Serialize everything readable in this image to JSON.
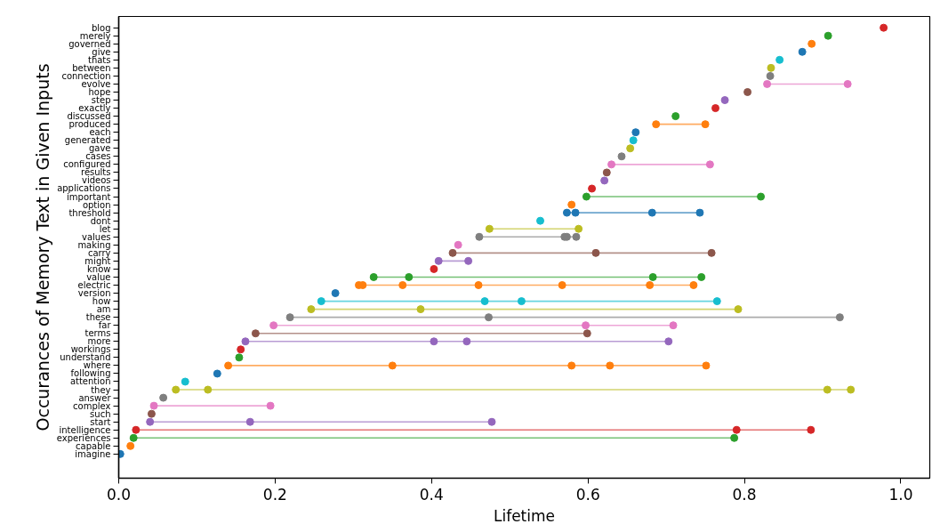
{
  "chart_data": {
    "type": "line",
    "orientation": "horizontal",
    "marker": "circle",
    "line_style": "solid",
    "xlabel": "Lifetime",
    "ylabel": "Occurances of Memory Text in Given Inputs",
    "xlim": [
      0,
      1.037
    ],
    "xticks": [
      {
        "value": 0,
        "label": "0.0"
      },
      0.2,
      0.4,
      0.6,
      0.8,
      {
        "value": 1,
        "label": "1.0"
      }
    ],
    "categories": [
      "blog",
      "merely",
      "governed",
      "give",
      "thats",
      "between",
      "connection",
      "evolve",
      "hope",
      "step",
      "exactly",
      "discussed",
      "produced",
      "each",
      "generated",
      "gave",
      "cases",
      "configured",
      "results",
      "videos",
      "applications",
      "important",
      "option",
      "threshold",
      "dont",
      "let",
      "values",
      "making",
      "carry",
      "might",
      "know",
      "value",
      "electric",
      "version",
      "how",
      "am",
      "these",
      "far",
      "terms",
      "more",
      "workings",
      "understand",
      "where",
      "following",
      "attention",
      "they",
      "answer",
      "complex",
      "such",
      "start",
      "intelligence",
      "experiences",
      "capable",
      "imagine"
    ],
    "series": [
      {
        "color": "#d62728",
        "x": [
          "blog"
        ],
        "values": [
          0.978
        ]
      },
      {
        "color": "#2ca02c",
        "x": [
          "merely"
        ],
        "values": [
          0.907
        ]
      },
      {
        "color": "#ff7f0e",
        "x": [
          "governed"
        ],
        "values": [
          0.886
        ]
      },
      {
        "color": "#1f77b4",
        "x": [
          "give"
        ],
        "values": [
          0.874
        ]
      },
      {
        "color": "#17becf",
        "x": [
          "thats"
        ],
        "values": [
          0.845
        ]
      },
      {
        "color": "#bcbd22",
        "x": [
          "between"
        ],
        "values": [
          0.834
        ]
      },
      {
        "color": "#7f7f7f",
        "x": [
          "connection"
        ],
        "values": [
          0.833
        ]
      },
      {
        "color": "#e377c2",
        "x": [
          "evolve",
          "evolve"
        ],
        "values": [
          0.829,
          0.932
        ]
      },
      {
        "color": "#8c564b",
        "x": [
          "hope"
        ],
        "values": [
          0.804
        ]
      },
      {
        "color": "#9467bd",
        "x": [
          "step"
        ],
        "values": [
          0.775
        ]
      },
      {
        "color": "#d62728",
        "x": [
          "exactly"
        ],
        "values": [
          0.763
        ]
      },
      {
        "color": "#2ca02c",
        "x": [
          "discussed"
        ],
        "values": [
          0.712
        ]
      },
      {
        "color": "#ff7f0e",
        "x": [
          "produced",
          "produced"
        ],
        "values": [
          0.687,
          0.75
        ]
      },
      {
        "color": "#1f77b4",
        "x": [
          "each"
        ],
        "values": [
          0.661
        ]
      },
      {
        "color": "#17becf",
        "x": [
          "generated"
        ],
        "values": [
          0.658
        ]
      },
      {
        "color": "#bcbd22",
        "x": [
          "gave"
        ],
        "values": [
          0.654
        ]
      },
      {
        "color": "#7f7f7f",
        "x": [
          "cases"
        ],
        "values": [
          0.643
        ]
      },
      {
        "color": "#e377c2",
        "x": [
          "configured",
          "configured"
        ],
        "values": [
          0.63,
          0.756
        ]
      },
      {
        "color": "#8c564b",
        "x": [
          "results"
        ],
        "values": [
          0.624
        ]
      },
      {
        "color": "#9467bd",
        "x": [
          "videos"
        ],
        "values": [
          0.621
        ]
      },
      {
        "color": "#d62728",
        "x": [
          "applications"
        ],
        "values": [
          0.605
        ]
      },
      {
        "color": "#2ca02c",
        "x": [
          "important",
          "important"
        ],
        "values": [
          0.598,
          0.821
        ]
      },
      {
        "color": "#ff7f0e",
        "x": [
          "option"
        ],
        "values": [
          0.579
        ]
      },
      {
        "color": "#1f77b4",
        "x": [
          "threshold",
          "threshold",
          "threshold",
          "threshold"
        ],
        "values": [
          0.573,
          0.584,
          0.682,
          0.743
        ]
      },
      {
        "color": "#17becf",
        "x": [
          "dont"
        ],
        "values": [
          0.539
        ]
      },
      {
        "color": "#bcbd22",
        "x": [
          "let",
          "let"
        ],
        "values": [
          0.474,
          0.588
        ]
      },
      {
        "color": "#7f7f7f",
        "x": [
          "values",
          "values",
          "values",
          "values"
        ],
        "values": [
          0.461,
          0.57,
          0.573,
          0.585
        ]
      },
      {
        "color": "#e377c2",
        "x": [
          "making"
        ],
        "values": [
          0.434
        ]
      },
      {
        "color": "#8c564b",
        "x": [
          "carry",
          "carry",
          "carry"
        ],
        "values": [
          0.427,
          0.61,
          0.758
        ]
      },
      {
        "color": "#9467bd",
        "x": [
          "might",
          "might"
        ],
        "values": [
          0.409,
          0.447
        ]
      },
      {
        "color": "#d62728",
        "x": [
          "know"
        ],
        "values": [
          0.403
        ]
      },
      {
        "color": "#2ca02c",
        "x": [
          "value",
          "value",
          "value",
          "value"
        ],
        "values": [
          0.326,
          0.371,
          0.683,
          0.745
        ]
      },
      {
        "color": "#ff7f0e",
        "x": [
          "electric",
          "electric",
          "electric",
          "electric",
          "electric",
          "electric",
          "electric"
        ],
        "values": [
          0.307,
          0.312,
          0.363,
          0.46,
          0.567,
          0.679,
          0.735
        ]
      },
      {
        "color": "#1f77b4",
        "x": [
          "version"
        ],
        "values": [
          0.277
        ]
      },
      {
        "color": "#17becf",
        "x": [
          "how",
          "how",
          "how",
          "how"
        ],
        "values": [
          0.259,
          0.468,
          0.515,
          0.765
        ]
      },
      {
        "color": "#bcbd22",
        "x": [
          "am",
          "am",
          "am"
        ],
        "values": [
          0.246,
          0.386,
          0.792
        ]
      },
      {
        "color": "#7f7f7f",
        "x": [
          "these",
          "these",
          "these"
        ],
        "values": [
          0.219,
          0.473,
          0.922
        ]
      },
      {
        "color": "#e377c2",
        "x": [
          "far",
          "far",
          "far"
        ],
        "values": [
          0.198,
          0.597,
          0.709
        ]
      },
      {
        "color": "#8c564b",
        "x": [
          "terms",
          "terms"
        ],
        "values": [
          0.175,
          0.599
        ]
      },
      {
        "color": "#9467bd",
        "x": [
          "more",
          "more",
          "more",
          "more"
        ],
        "values": [
          0.162,
          0.403,
          0.445,
          0.703
        ]
      },
      {
        "color": "#d62728",
        "x": [
          "workings"
        ],
        "values": [
          0.156
        ]
      },
      {
        "color": "#2ca02c",
        "x": [
          "understand"
        ],
        "values": [
          0.154
        ]
      },
      {
        "color": "#ff7f0e",
        "x": [
          "where",
          "where",
          "where",
          "where",
          "where"
        ],
        "values": [
          0.14,
          0.35,
          0.579,
          0.628,
          0.751
        ]
      },
      {
        "color": "#1f77b4",
        "x": [
          "following"
        ],
        "values": [
          0.126
        ]
      },
      {
        "color": "#17becf",
        "x": [
          "attention"
        ],
        "values": [
          0.085
        ]
      },
      {
        "color": "#bcbd22",
        "x": [
          "they",
          "they",
          "they",
          "they"
        ],
        "values": [
          0.073,
          0.114,
          0.906,
          0.936
        ]
      },
      {
        "color": "#7f7f7f",
        "x": [
          "answer"
        ],
        "values": [
          0.057
        ]
      },
      {
        "color": "#e377c2",
        "x": [
          "complex",
          "complex"
        ],
        "values": [
          0.045,
          0.194
        ]
      },
      {
        "color": "#8c564b",
        "x": [
          "such"
        ],
        "values": [
          0.042
        ]
      },
      {
        "color": "#9467bd",
        "x": [
          "start",
          "start",
          "start"
        ],
        "values": [
          0.04,
          0.168,
          0.477
        ]
      },
      {
        "color": "#d62728",
        "x": [
          "intelligence",
          "intelligence",
          "intelligence"
        ],
        "values": [
          0.022,
          0.79,
          0.885
        ]
      },
      {
        "color": "#2ca02c",
        "x": [
          "experiences",
          "experiences"
        ],
        "values": [
          0.019,
          0.787
        ]
      },
      {
        "color": "#ff7f0e",
        "x": [
          "capable"
        ],
        "values": [
          0.015
        ]
      },
      {
        "color": "#1f77b4",
        "x": [
          "imagine"
        ],
        "values": [
          0.002
        ]
      }
    ]
  }
}
